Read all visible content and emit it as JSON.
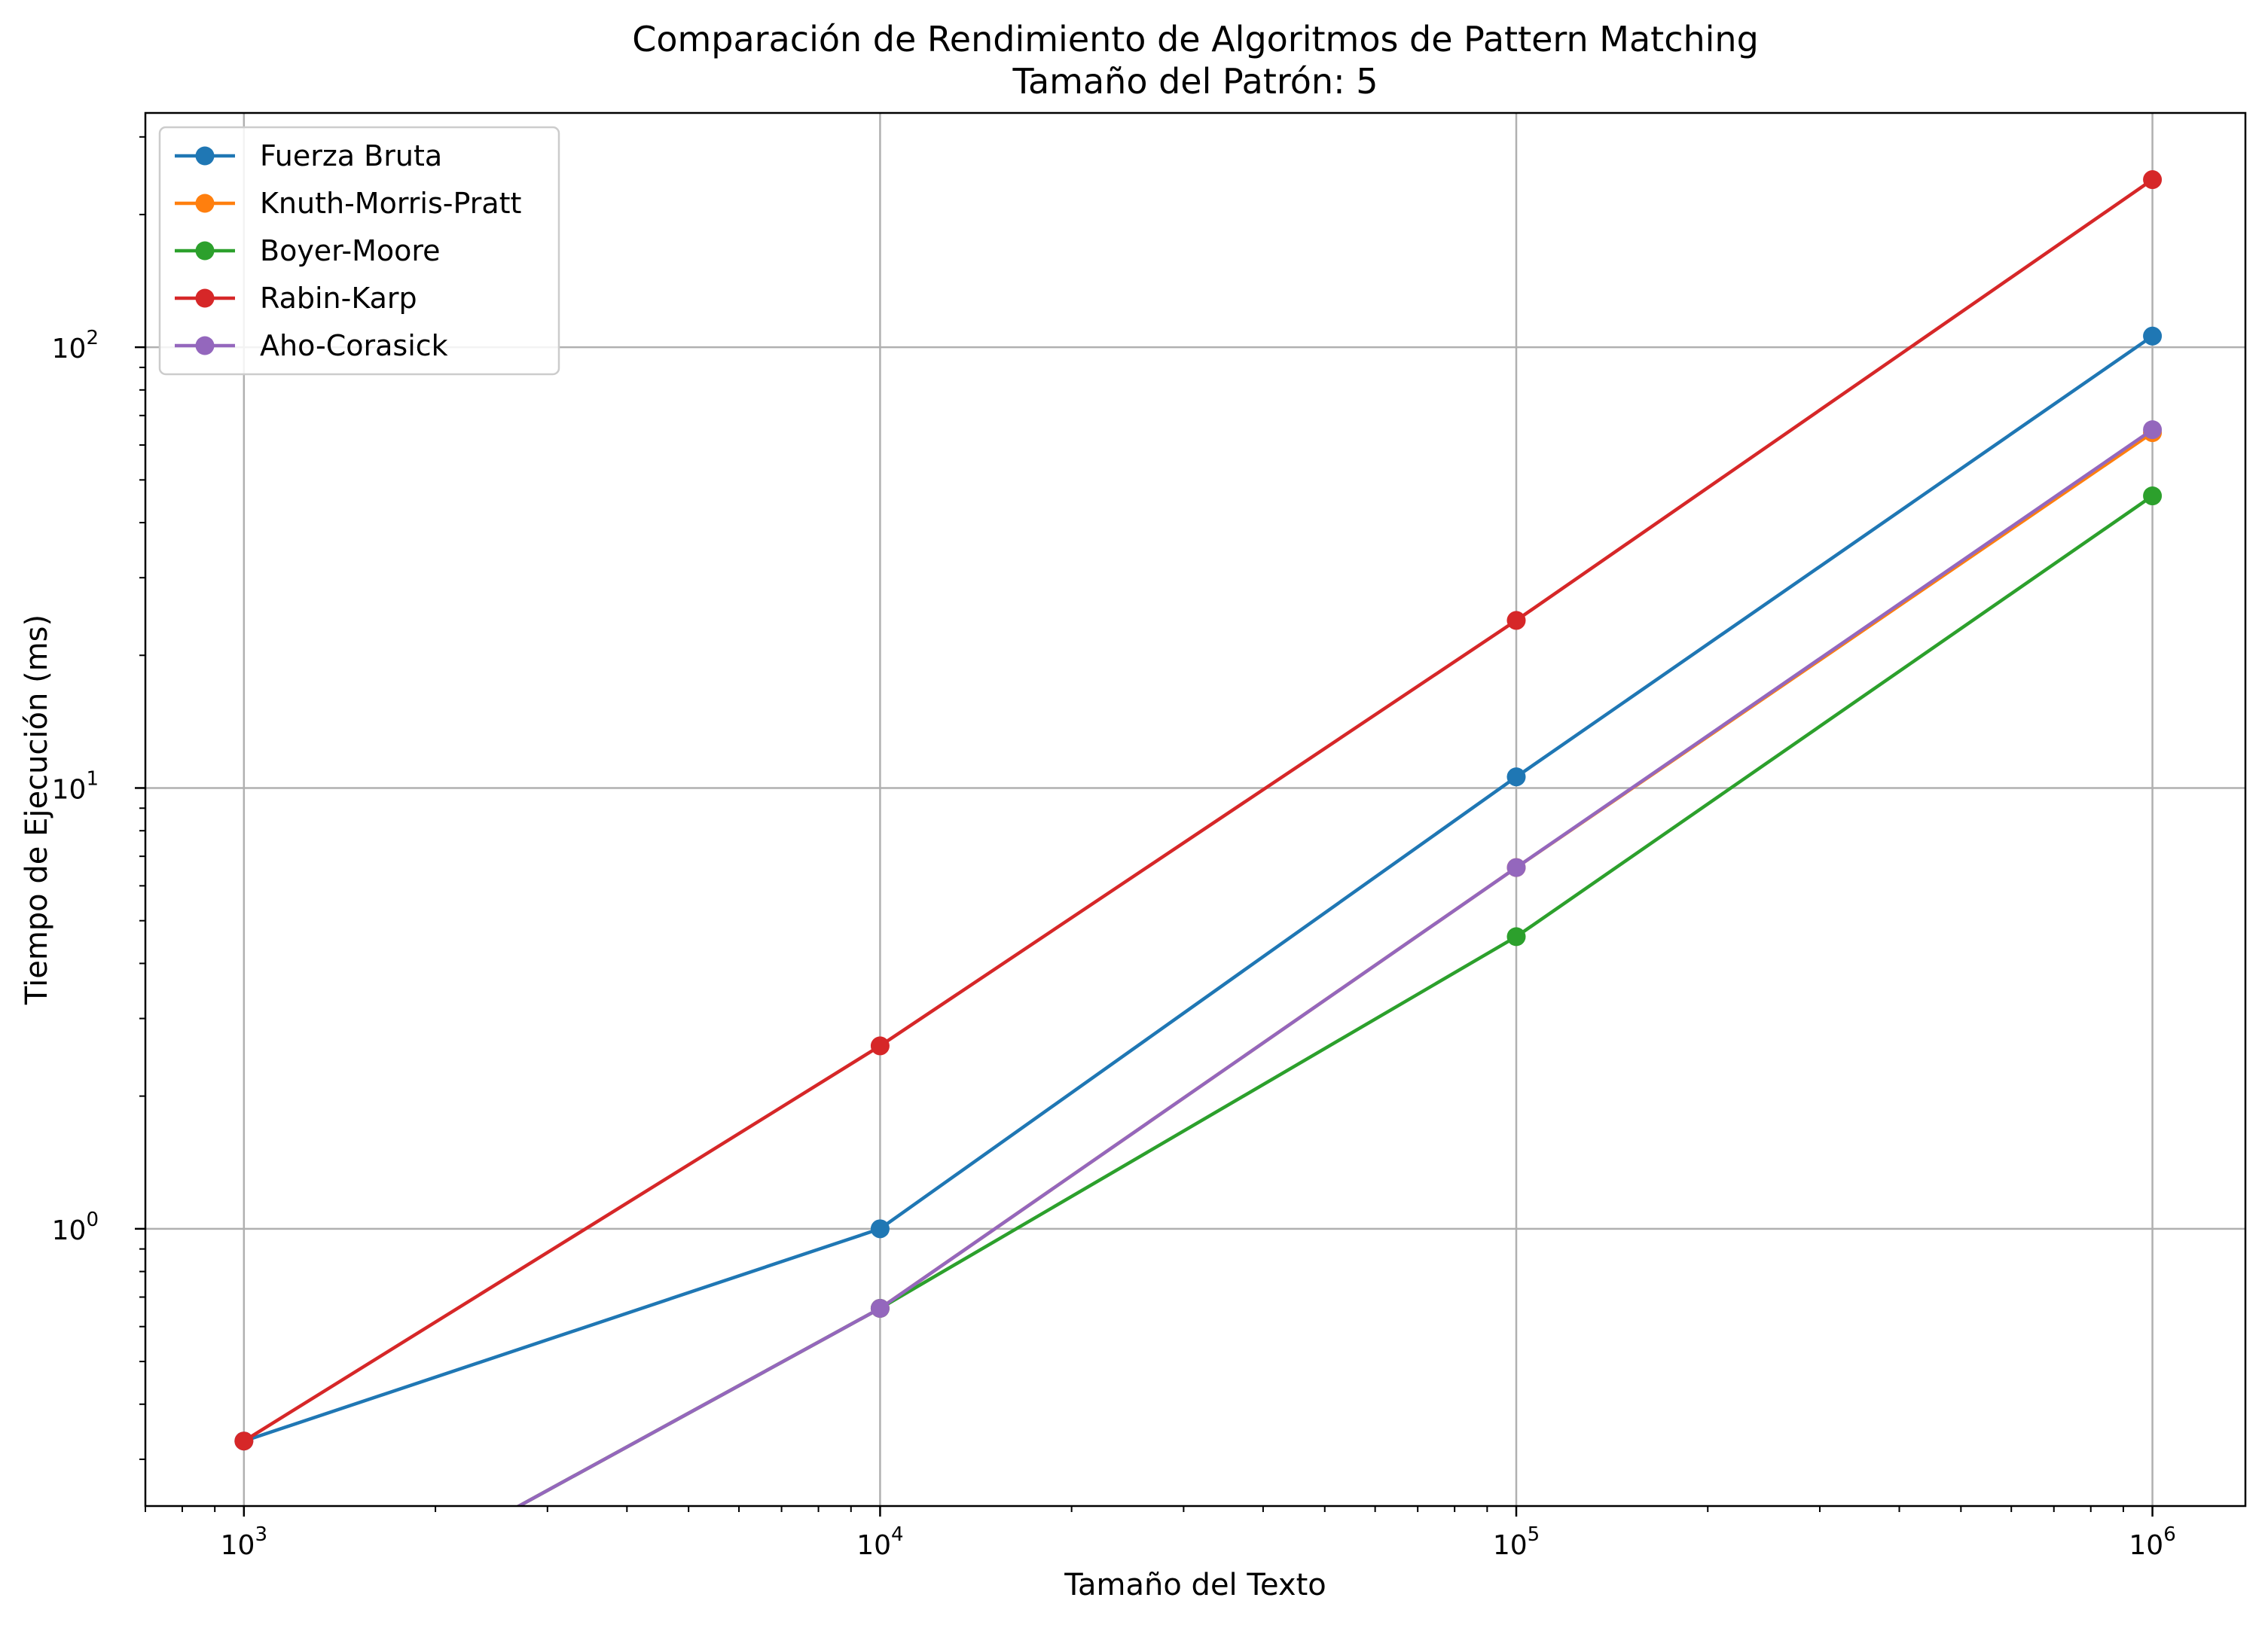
{
  "chart_data": {
    "type": "line",
    "title": "Comparación de Rendimiento de Algoritmos de Pattern Matching",
    "subtitle": "Tamaño del Patrón: 5",
    "xlabel": "Tamaño del Texto",
    "ylabel": "Tiempo de Ejecución (ms)",
    "xscale": "log",
    "yscale": "log",
    "xlim": [
      700,
      1400000
    ],
    "ylim": [
      0.235,
      340
    ],
    "x": [
      1000,
      10000,
      100000,
      1000000
    ],
    "x_tick_labels": [
      {
        "value": 1000,
        "base": "10",
        "exp": "3"
      },
      {
        "value": 10000,
        "base": "10",
        "exp": "4"
      },
      {
        "value": 100000,
        "base": "10",
        "exp": "5"
      },
      {
        "value": 1000000,
        "base": "10",
        "exp": "6"
      }
    ],
    "y_tick_labels": [
      {
        "value": 1,
        "base": "10",
        "exp": "0"
      },
      {
        "value": 10,
        "base": "10",
        "exp": "1"
      },
      {
        "value": 100,
        "base": "10",
        "exp": "2"
      }
    ],
    "grid": true,
    "legend_position": "top-left",
    "series": [
      {
        "name": "Fuerza Bruta",
        "color": "#1f77b4",
        "values": [
          0.33,
          1.0,
          10.6,
          106
        ]
      },
      {
        "name": "Knuth-Morris-Pratt",
        "color": "#ff7f0e",
        "values": [
          0,
          0.66,
          6.6,
          64
        ]
      },
      {
        "name": "Boyer-Moore",
        "color": "#2ca02c",
        "values": [
          0,
          0.66,
          4.6,
          46
        ]
      },
      {
        "name": "Rabin-Karp",
        "color": "#d62728",
        "values": [
          0.33,
          2.6,
          24,
          240
        ]
      },
      {
        "name": "Aho-Corasick",
        "color": "#9467bd",
        "values": [
          0,
          0.66,
          6.6,
          65
        ]
      }
    ]
  }
}
